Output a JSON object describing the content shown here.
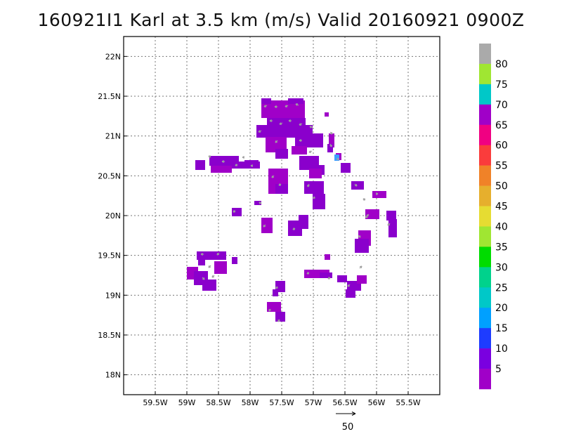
{
  "title": "160921I1 Karl at 3.5 km (m/s) Valid 20160921 0900Z",
  "map": {
    "lon_range": [
      -60,
      -55
    ],
    "lat_range": [
      17.75,
      22.25
    ],
    "lon_ticks": [
      {
        "value": -59.5,
        "label": "59.5W"
      },
      {
        "value": -59.0,
        "label": "59W"
      },
      {
        "value": -58.5,
        "label": "58.5W"
      },
      {
        "value": -58.0,
        "label": "58W"
      },
      {
        "value": -57.5,
        "label": "57.5W"
      },
      {
        "value": -57.0,
        "label": "57W"
      },
      {
        "value": -56.5,
        "label": "56.5W"
      },
      {
        "value": -56.0,
        "label": "56W"
      },
      {
        "value": -55.5,
        "label": "55.5W"
      }
    ],
    "lat_ticks": [
      {
        "value": 22.0,
        "label": "22N"
      },
      {
        "value": 21.5,
        "label": "21.5N"
      },
      {
        "value": 21.0,
        "label": "21N"
      },
      {
        "value": 20.5,
        "label": "20.5N"
      },
      {
        "value": 20.0,
        "label": "20N"
      },
      {
        "value": 19.5,
        "label": "19.5N"
      },
      {
        "value": 19.0,
        "label": "19N"
      },
      {
        "value": 18.5,
        "label": "18.5N"
      },
      {
        "value": 18.0,
        "label": "18N"
      }
    ],
    "grid": true,
    "field_color": "#8a00cc",
    "field_color_alt": "#a000c8",
    "arrow_color": "#a0a0a0",
    "highlight_color": "#3ea0ff"
  },
  "colorbar": {
    "bins": [
      {
        "color": "#a000c8"
      },
      {
        "color": "#7a00e0",
        "label": "5"
      },
      {
        "color": "#1e3cff",
        "label": "10"
      },
      {
        "color": "#00a0ff",
        "label": "15"
      },
      {
        "color": "#00c8c8",
        "label": "20"
      },
      {
        "color": "#00d28c",
        "label": "25"
      },
      {
        "color": "#00dc00",
        "label": "30"
      },
      {
        "color": "#a0e632",
        "label": "35"
      },
      {
        "color": "#e6dc32",
        "label": "40"
      },
      {
        "color": "#e6af2d",
        "label": "45"
      },
      {
        "color": "#f08228",
        "label": "50"
      },
      {
        "color": "#fa3c3c",
        "label": "55"
      },
      {
        "color": "#f00082",
        "label": "60"
      },
      {
        "color": "#a000c8",
        "label": "65"
      },
      {
        "color": "#00c8c8",
        "label": "70"
      },
      {
        "color": "#a0e632",
        "label": "75"
      },
      {
        "color": "#aaaaaa",
        "label": "80"
      }
    ]
  },
  "reference_vector": {
    "label": "50"
  }
}
